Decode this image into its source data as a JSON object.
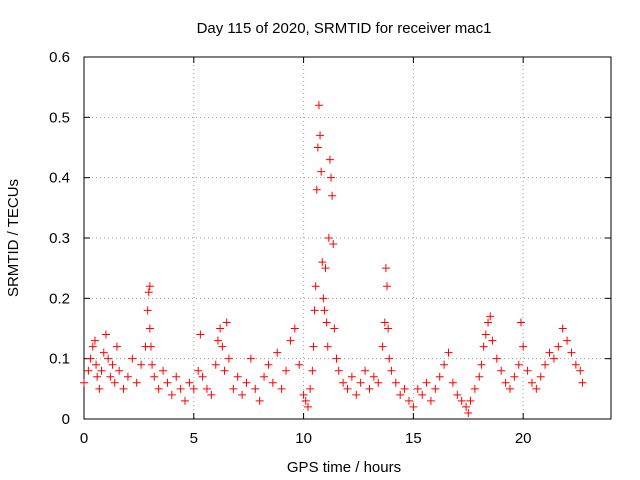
{
  "chart_data": {
    "type": "scatter",
    "title": "Day 115 of 2020, SRMTID for receiver mac1",
    "xlabel": "GPS time / hours",
    "ylabel": "SRMTID / TECUs",
    "xlim": [
      0,
      24
    ],
    "ylim": [
      0,
      0.6
    ],
    "xticks": [
      0,
      5,
      10,
      15,
      20
    ],
    "xtick_labels": [
      "0",
      "5",
      "10",
      "15",
      "20"
    ],
    "yticks": [
      0,
      0.1,
      0.2,
      0.3,
      0.4,
      0.5,
      0.6
    ],
    "ytick_labels": [
      "0",
      "0.1",
      "0.2",
      "0.3",
      "0.4",
      "0.5",
      "0.6"
    ],
    "grid": true,
    "marker": "+",
    "series": [
      {
        "name": "SRMTID",
        "color": "#ff0000",
        "x": [
          0.0,
          0.2,
          0.3,
          0.4,
          0.5,
          0.55,
          0.6,
          0.7,
          0.8,
          0.9,
          1.0,
          1.1,
          1.2,
          1.3,
          1.4,
          1.5,
          1.6,
          1.8,
          2.0,
          2.2,
          2.4,
          2.6,
          2.8,
          2.9,
          2.95,
          3.0,
          3.0,
          3.05,
          3.1,
          3.2,
          3.4,
          3.6,
          3.8,
          4.0,
          4.2,
          4.4,
          4.6,
          4.8,
          5.0,
          5.2,
          5.3,
          5.4,
          5.6,
          5.8,
          6.0,
          6.1,
          6.2,
          6.3,
          6.4,
          6.5,
          6.6,
          6.8,
          7.0,
          7.2,
          7.4,
          7.6,
          7.8,
          8.0,
          8.2,
          8.4,
          8.6,
          8.8,
          9.0,
          9.2,
          9.4,
          9.6,
          9.8,
          10.0,
          10.1,
          10.2,
          10.3,
          10.4,
          10.45,
          10.5,
          10.55,
          10.6,
          10.65,
          10.7,
          10.75,
          10.8,
          10.85,
          10.9,
          10.95,
          11.0,
          11.05,
          11.1,
          11.15,
          11.2,
          11.25,
          11.3,
          11.35,
          11.4,
          11.5,
          11.6,
          11.8,
          12.0,
          12.2,
          12.4,
          12.6,
          12.8,
          13.0,
          13.2,
          13.4,
          13.6,
          13.7,
          13.75,
          13.8,
          13.85,
          13.9,
          14.0,
          14.2,
          14.4,
          14.6,
          14.8,
          15.0,
          15.2,
          15.4,
          15.6,
          15.8,
          16.0,
          16.2,
          16.4,
          16.6,
          16.8,
          17.0,
          17.2,
          17.4,
          17.5,
          17.6,
          17.8,
          18.0,
          18.1,
          18.2,
          18.3,
          18.4,
          18.5,
          18.6,
          18.8,
          19.0,
          19.2,
          19.4,
          19.6,
          19.8,
          19.9,
          20.0,
          20.2,
          20.4,
          20.6,
          20.8,
          21.0,
          21.2,
          21.4,
          21.6,
          21.8,
          22.0,
          22.2,
          22.4,
          22.6,
          22.7
        ],
        "y": [
          0.06,
          0.08,
          0.1,
          0.12,
          0.13,
          0.09,
          0.07,
          0.05,
          0.08,
          0.11,
          0.14,
          0.1,
          0.07,
          0.09,
          0.06,
          0.12,
          0.08,
          0.05,
          0.07,
          0.1,
          0.06,
          0.09,
          0.12,
          0.18,
          0.21,
          0.22,
          0.15,
          0.12,
          0.09,
          0.07,
          0.05,
          0.08,
          0.06,
          0.04,
          0.07,
          0.05,
          0.03,
          0.06,
          0.05,
          0.08,
          0.14,
          0.07,
          0.05,
          0.04,
          0.09,
          0.13,
          0.15,
          0.12,
          0.08,
          0.16,
          0.1,
          0.05,
          0.07,
          0.04,
          0.06,
          0.1,
          0.05,
          0.03,
          0.07,
          0.09,
          0.06,
          0.11,
          0.05,
          0.08,
          0.13,
          0.15,
          0.09,
          0.04,
          0.03,
          0.02,
          0.05,
          0.08,
          0.12,
          0.18,
          0.22,
          0.38,
          0.45,
          0.52,
          0.47,
          0.41,
          0.26,
          0.2,
          0.18,
          0.25,
          0.16,
          0.12,
          0.3,
          0.43,
          0.4,
          0.37,
          0.29,
          0.15,
          0.1,
          0.08,
          0.06,
          0.05,
          0.07,
          0.04,
          0.06,
          0.08,
          0.05,
          0.07,
          0.06,
          0.12,
          0.16,
          0.25,
          0.22,
          0.15,
          0.1,
          0.08,
          0.06,
          0.04,
          0.05,
          0.03,
          0.02,
          0.05,
          0.04,
          0.06,
          0.03,
          0.05,
          0.07,
          0.09,
          0.11,
          0.06,
          0.04,
          0.03,
          0.02,
          0.01,
          0.03,
          0.05,
          0.07,
          0.09,
          0.12,
          0.14,
          0.16,
          0.17,
          0.13,
          0.1,
          0.08,
          0.06,
          0.05,
          0.07,
          0.09,
          0.16,
          0.12,
          0.08,
          0.06,
          0.05,
          0.07,
          0.09,
          0.11,
          0.1,
          0.12,
          0.15,
          0.13,
          0.11,
          0.09,
          0.08,
          0.06
        ]
      }
    ]
  }
}
